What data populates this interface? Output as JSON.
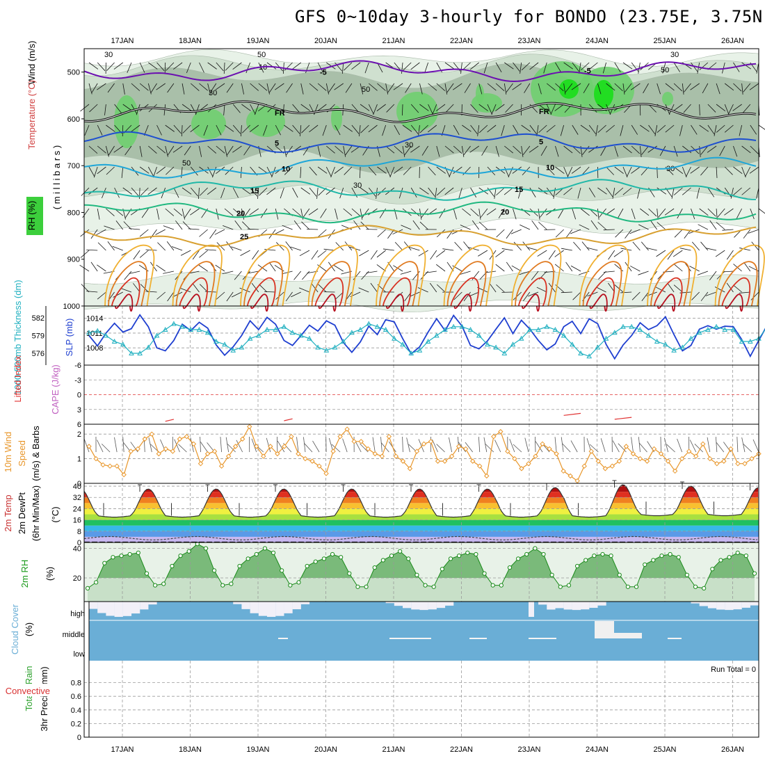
{
  "title": "GFS 0~10day 3-hourly for BONDO (23.75E, 3.75N)",
  "colors": {
    "pink": "#6b0fb0",
    "fr": "#000000",
    "t5": "#1e4fd0",
    "t10": "#1ea6d8",
    "t15": "#20b8a8",
    "t20": "#20b880",
    "t25": "#d8a030",
    "slp": "#1f3fd0",
    "thick": "#20b0c0",
    "wind": "#e8962a",
    "rh2m": "#1a9a1a",
    "cloud": "#6aaed6",
    "lifted": "#e03030"
  },
  "chart_data": [
    {
      "type": "line",
      "name": "upper-air cross section",
      "dates": [
        "17JAN",
        "18JAN",
        "19JAN",
        "20JAN",
        "21JAN",
        "22JAN",
        "23JAN",
        "24JAN",
        "25JAN",
        "26JAN"
      ],
      "ylabel_parts": [
        "RH (%)",
        "Temperature (°C)",
        "Wind (m/s)"
      ],
      "yaxis_label": "( m i l l i b a r s )",
      "yticks": [
        "500",
        "600",
        "700",
        "800",
        "900",
        "1000"
      ],
      "ylim": [
        450,
        1000
      ],
      "isotherms": [
        {
          "label": "-5",
          "level_mb": 498
        },
        {
          "label": "FR",
          "level_mb": 585
        },
        {
          "label": "5",
          "level_mb": 650
        },
        {
          "label": "10",
          "level_mb": 705
        },
        {
          "label": "15",
          "level_mb": 752
        },
        {
          "label": "20",
          "level_mb": 800
        },
        {
          "label": "25",
          "level_mb": 850
        }
      ],
      "rh_labels": [
        "30",
        "50",
        "10",
        "30",
        "50",
        "30",
        "30",
        "50",
        "30",
        "30",
        "50"
      ]
    },
    {
      "type": "line",
      "name": "sea level pressure and thickness",
      "ylabel_left": "1000-500mb Thickness (dm)",
      "ylabel_right": "SLP (mb)",
      "left_ticks": [
        "582",
        "579",
        "576"
      ],
      "right_ticks": [
        "1014",
        "1011",
        "1008"
      ],
      "slp": [
        1010.5,
        1008.4,
        1011.0,
        1013.0,
        1011.2,
        1011.9,
        1014.7,
        1012.3,
        1008.0,
        1007.4,
        1009.5,
        1012.8,
        1011.5,
        1013.2,
        1012.0,
        1008.6,
        1006.5,
        1008.2,
        1010.5,
        1013.5,
        1011.7,
        1014.2,
        1012.8,
        1009.5,
        1008.5,
        1010.5,
        1012.6,
        1011.4,
        1013.5,
        1012.6,
        1009.1,
        1007.1,
        1009.2,
        1012.4,
        1010.7,
        1013.7,
        1013.3,
        1009.9,
        1006.8,
        1008.2,
        1011.2,
        1013.9,
        1011.5,
        1014.6,
        1012.4,
        1008.5,
        1007.8,
        1009.4,
        1011.8,
        1014.1,
        1010.9,
        1013.6,
        1011.8,
        1009.5,
        1007.6,
        1008.8,
        1012.3,
        1013.4,
        1010.9,
        1013.9,
        1012.9,
        1008.7,
        1005.8,
        1008.6,
        1010.5,
        1013.1,
        1011.7,
        1012.5,
        1014.3,
        1010.7,
        1007.4,
        1008.5,
        1011.8,
        1012.5,
        1011.8,
        1012.4,
        1012.3,
        1009.7,
        1006.3,
        1009.5,
        1012.6,
        1010.5,
        1012.1,
        1014.0
      ],
      "thickness": [
        579.5,
        579.8,
        579.0,
        578.0,
        577.5,
        576.0,
        576.0,
        577.0,
        579.0,
        580.0,
        581.0,
        580.5,
        580.0,
        580.0,
        579.5,
        578.0,
        577.5,
        576.5,
        577.0,
        578.5,
        579.0,
        580.0,
        580.0,
        580.5,
        579.5,
        579.0,
        578.5,
        577.0,
        576.5,
        577.0,
        578.0,
        579.5,
        580.0,
        581.0,
        580.5,
        580.0,
        578.5,
        577.5,
        576.0,
        576.5,
        578.0,
        579.0,
        580.0,
        580.5,
        580.5,
        580.0,
        579.0,
        577.5,
        577.0,
        576.0,
        577.5,
        578.5,
        580.0,
        580.0,
        580.5,
        580.0,
        579.0,
        577.5,
        576.0,
        575.5,
        577.0,
        578.5,
        579.5,
        580.5,
        580.5,
        580.0,
        579.0,
        578.0,
        577.5,
        576.5,
        577.0,
        578.5,
        579.5,
        580.0,
        580.5,
        580.0,
        580.0,
        578.0,
        578.0,
        578.5,
        580.5,
        581.5,
        580.0,
        578.5
      ]
    },
    {
      "type": "line",
      "name": "lifted index and cape",
      "ylabel_left": "Lifted Index",
      "ylabel_right": "CAPE (J/kg)",
      "yticks": [
        "-6",
        "-3",
        "0",
        "3",
        "6"
      ],
      "ylim": [
        -6,
        6
      ],
      "segments": [
        [
          9,
          10,
          5.4
        ],
        [
          23,
          24,
          5.3
        ],
        [
          56,
          58,
          4.2
        ],
        [
          62,
          64,
          5.0
        ]
      ]
    },
    {
      "type": "line",
      "name": "10m wind",
      "ylabel_parts": [
        "10m Wind",
        "Speed",
        "(m/s) & Barbs"
      ],
      "yticks": [
        "0",
        "1",
        "2"
      ],
      "ylim": [
        0,
        2.4
      ],
      "speed": [
        1.5,
        1.0,
        0.75,
        0.7,
        0.7,
        0.35,
        1.3,
        1.4,
        1.8,
        2.0,
        1.2,
        1.4,
        1.3,
        1.8,
        1.9,
        1.6,
        0.8,
        1.2,
        1.3,
        0.7,
        1.1,
        1.5,
        1.8,
        2.3,
        1.5,
        1.1,
        1.5,
        1.2,
        1.5,
        1.9,
        1.2,
        1.0,
        0.9,
        0.7,
        0.4,
        1.3,
        1.9,
        2.2,
        1.7,
        1.7,
        1.4,
        1.2,
        1.1,
        1.9,
        1.1,
        0.9,
        0.6,
        1.3,
        1.6,
        1.7,
        0.9,
        0.9,
        1.1,
        1.5,
        1.4,
        0.9,
        0.7,
        0.3,
        1.9,
        2.1,
        1.3,
        1.0,
        0.6,
        0.8,
        1.1,
        1.6,
        1.4,
        1.2,
        0.5,
        0.3,
        0.1,
        0.7,
        1.3,
        0.9,
        0.6,
        0.7,
        0.9,
        1.5,
        1.2,
        1.0,
        0.9,
        1.4,
        1.2,
        0.9,
        0.5,
        1.0,
        1.3,
        1.1,
        1.6,
        1.0,
        0.8,
        0.9,
        1.4,
        0.8,
        0.8,
        1.0,
        1.2
      ]
    },
    {
      "type": "area",
      "name": "2m temperature",
      "ylabel_parts": [
        "2m Temp",
        "2m DewPt",
        "(6hr Min/Max)",
        "(°C)"
      ],
      "yticks": [
        "40",
        "32",
        "24",
        "16",
        "8",
        "0"
      ],
      "ylim": [
        0,
        42
      ],
      "temp_max": [
        38,
        38,
        38,
        38,
        38,
        38,
        39,
        41,
        40,
        39
      ],
      "temp_min": [
        20,
        20,
        20,
        20,
        20,
        20,
        20,
        20,
        21,
        21
      ],
      "dewpoint_approx": 3
    },
    {
      "type": "area",
      "name": "2m relative humidity",
      "ylabel_parts": [
        "2m RH",
        "(%)"
      ],
      "yticks": [
        "40",
        "20"
      ],
      "ylim": [
        4,
        44
      ],
      "values": [
        13,
        17,
        30,
        34,
        35,
        36,
        37,
        23,
        15,
        16,
        28,
        35,
        38,
        43,
        40,
        25,
        15,
        16,
        28,
        33,
        36,
        40,
        37,
        25,
        15,
        17,
        28,
        31,
        33,
        36,
        34,
        23,
        14,
        14,
        27,
        32,
        35,
        38,
        33,
        22,
        15,
        14,
        26,
        33,
        35,
        37,
        36,
        23,
        15,
        15,
        27,
        33,
        36,
        40,
        36,
        22,
        14,
        15,
        28,
        32,
        35,
        36,
        35,
        22,
        14,
        14,
        29,
        32,
        35,
        36,
        34,
        22,
        14,
        13,
        26,
        32,
        34,
        37,
        35,
        23
      ]
    },
    {
      "type": "bar",
      "name": "cloud cover",
      "ylabel_parts": [
        "Cloud Cover",
        "(%)"
      ],
      "levels": [
        "high",
        "middle",
        "low"
      ]
    },
    {
      "type": "bar",
      "name": "3hr precipitation",
      "ylabel_parts": [
        "3hr Precip (mm)",
        "Total / Rain",
        "Convective"
      ],
      "yticks": [
        "0.8",
        "0.6",
        "0.4",
        "0.2",
        "0"
      ],
      "ylim": [
        0,
        1
      ],
      "values": [],
      "run_total": "Run Total = 0"
    }
  ]
}
